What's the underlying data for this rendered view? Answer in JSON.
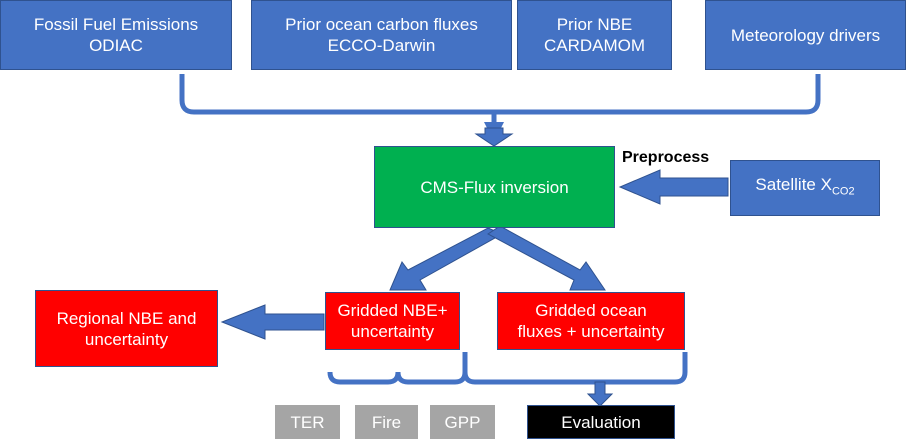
{
  "nodes": [
    {
      "lines": [
        "Fossil Fuel Emissions",
        "ODIAC"
      ]
    },
    {
      "lines": [
        "Prior ocean carbon fluxes",
        "ECCO-Darwin"
      ]
    },
    {
      "lines": [
        "Prior NBE",
        "CARDAMOM"
      ]
    },
    {
      "lines": [
        "Meteorology drivers"
      ]
    },
    {
      "lines": [
        "CMS-Flux inversion"
      ]
    },
    {
      "lines": [
        "Satellite X"
      ],
      "subscript": "CO2"
    },
    {
      "lines": [
        "Regional NBE and",
        "uncertainty"
      ]
    },
    {
      "lines": [
        "Gridded NBE+",
        "uncertainty"
      ]
    },
    {
      "lines": [
        "Gridded ocean",
        "fluxes + uncertainty"
      ]
    },
    {
      "lines": [
        "TER"
      ]
    },
    {
      "lines": [
        "Fire"
      ]
    },
    {
      "lines": [
        "GPP"
      ]
    },
    {
      "lines": [
        "Evaluation"
      ]
    }
  ],
  "preprocess_label": "Preprocess"
}
